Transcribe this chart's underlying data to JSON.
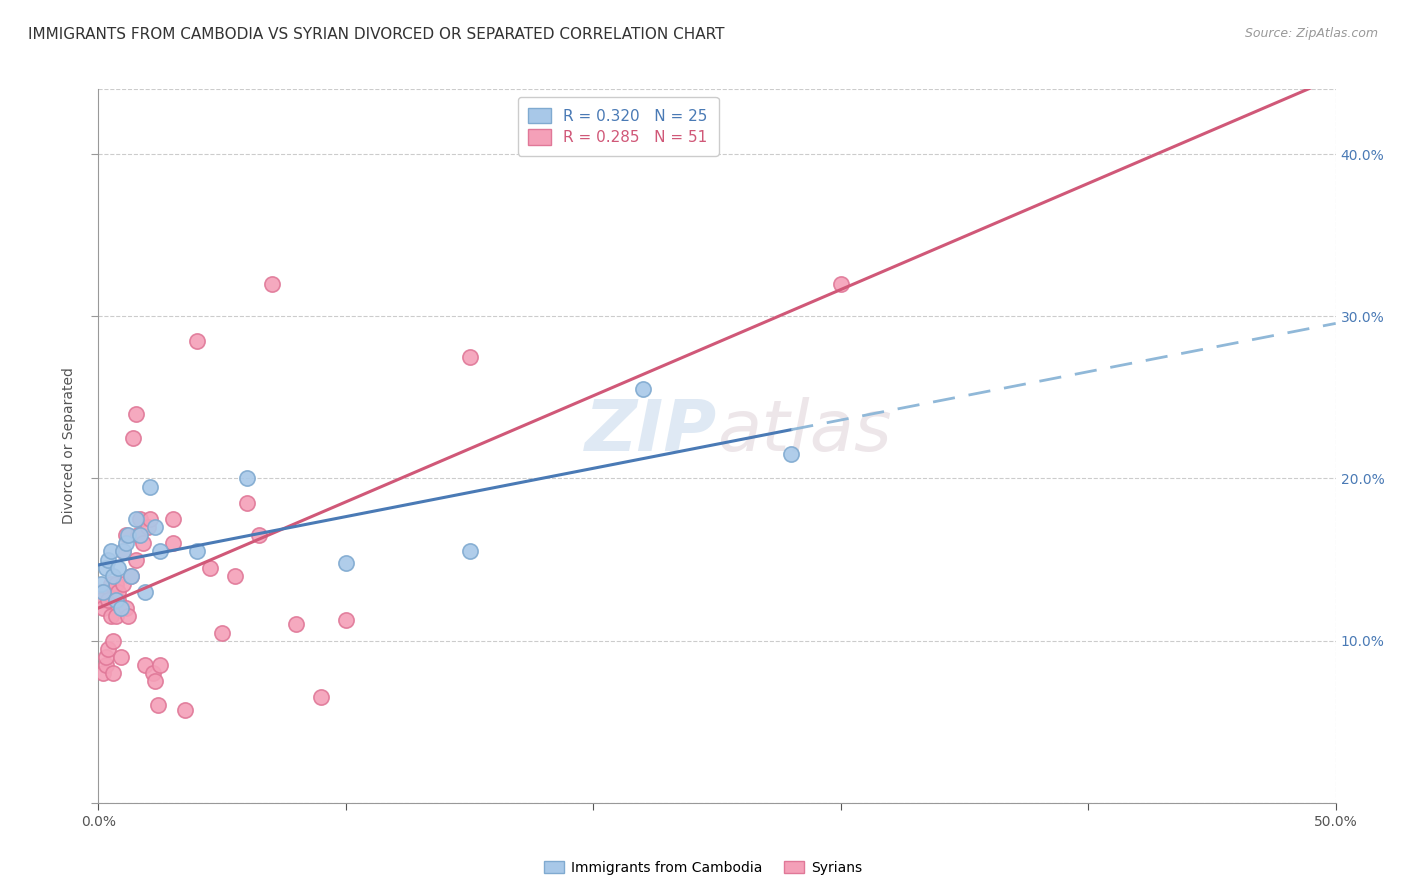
{
  "title": "IMMIGRANTS FROM CAMBODIA VS SYRIAN DIVORCED OR SEPARATED CORRELATION CHART",
  "source": "Source: ZipAtlas.com",
  "ylabel": "Divorced or Separated",
  "xlim": [
    0.0,
    0.5
  ],
  "ylim": [
    0.0,
    0.44
  ],
  "xticks": [
    0.0,
    0.1,
    0.2,
    0.3,
    0.4,
    0.5
  ],
  "yticks": [
    0.0,
    0.1,
    0.2,
    0.3,
    0.4
  ],
  "xtick_labels": [
    "0.0%",
    "",
    "",
    "",
    "",
    "50.0%"
  ],
  "ytick_labels": [
    "",
    "",
    "",
    "",
    ""
  ],
  "right_ytick_labels": [
    "",
    "10.0%",
    "20.0%",
    "30.0%",
    "40.0%"
  ],
  "cambodia_color": "#a8c8e8",
  "syrian_color": "#f4a0b8",
  "cambodia_edge": "#80aad0",
  "syrian_edge": "#e07898",
  "trendline_cambodia_solid_color": "#4a7ab5",
  "trendline_cambodia_dash_color": "#90b8d8",
  "trendline_syrian_color": "#d05878",
  "R_cambodia": 0.32,
  "N_cambodia": 25,
  "R_syrian": 0.285,
  "N_syrian": 51,
  "legend_label_cambodia": "Immigrants from Cambodia",
  "legend_label_syrian": "Syrians",
  "watermark_zip": "ZIP",
  "watermark_atlas": "atlas",
  "background_color": "#ffffff",
  "grid_color": "#cccccc",
  "title_fontsize": 11,
  "source_fontsize": 9,
  "axis_label_fontsize": 10,
  "tick_fontsize": 10,
  "legend_fontsize": 11,
  "scatter_size": 120,
  "cambodia_x": [
    0.001,
    0.002,
    0.003,
    0.004,
    0.005,
    0.006,
    0.007,
    0.008,
    0.009,
    0.01,
    0.011,
    0.012,
    0.013,
    0.015,
    0.017,
    0.019,
    0.021,
    0.023,
    0.025,
    0.04,
    0.06,
    0.1,
    0.15,
    0.22,
    0.28
  ],
  "cambodia_y": [
    0.135,
    0.13,
    0.145,
    0.15,
    0.155,
    0.14,
    0.125,
    0.145,
    0.12,
    0.155,
    0.16,
    0.165,
    0.14,
    0.175,
    0.165,
    0.13,
    0.195,
    0.17,
    0.155,
    0.155,
    0.2,
    0.148,
    0.155,
    0.255,
    0.215
  ],
  "syrian_x": [
    0.001,
    0.001,
    0.002,
    0.002,
    0.003,
    0.003,
    0.004,
    0.004,
    0.005,
    0.005,
    0.006,
    0.006,
    0.007,
    0.007,
    0.008,
    0.008,
    0.009,
    0.01,
    0.01,
    0.011,
    0.011,
    0.012,
    0.013,
    0.014,
    0.015,
    0.015,
    0.016,
    0.017,
    0.018,
    0.019,
    0.02,
    0.021,
    0.022,
    0.023,
    0.024,
    0.025,
    0.03,
    0.03,
    0.035,
    0.04,
    0.045,
    0.05,
    0.055,
    0.06,
    0.065,
    0.07,
    0.08,
    0.09,
    0.1,
    0.15,
    0.3
  ],
  "syrian_y": [
    0.13,
    0.125,
    0.12,
    0.08,
    0.085,
    0.09,
    0.095,
    0.125,
    0.115,
    0.135,
    0.08,
    0.1,
    0.135,
    0.115,
    0.125,
    0.13,
    0.09,
    0.135,
    0.155,
    0.12,
    0.165,
    0.115,
    0.14,
    0.225,
    0.15,
    0.24,
    0.165,
    0.175,
    0.16,
    0.085,
    0.17,
    0.175,
    0.08,
    0.075,
    0.06,
    0.085,
    0.16,
    0.175,
    0.057,
    0.285,
    0.145,
    0.105,
    0.14,
    0.185,
    0.165,
    0.32,
    0.11,
    0.065,
    0.113,
    0.275,
    0.32
  ]
}
